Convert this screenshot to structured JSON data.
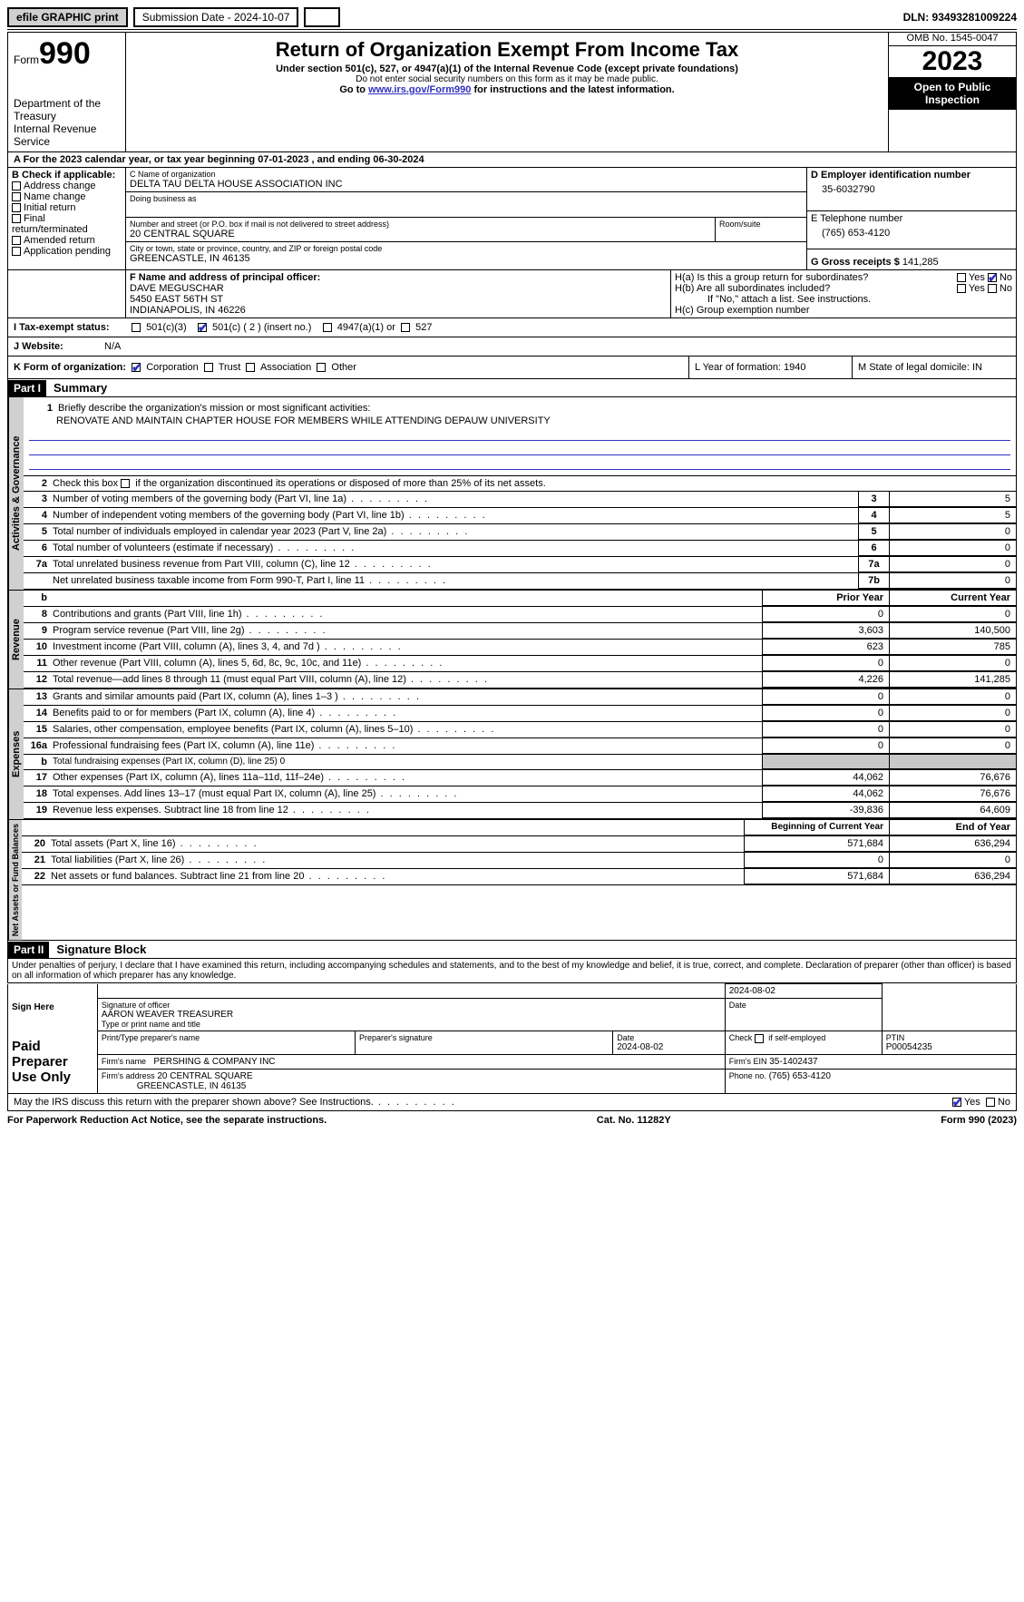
{
  "topbar": {
    "efile": "efile GRAPHIC print",
    "submission_label": "Submission Date - 2024-10-07",
    "dln_label": "DLN: 93493281009224"
  },
  "header": {
    "form_prefix": "Form",
    "form_number": "990",
    "dept": "Department of the Treasury",
    "irs": "Internal Revenue Service",
    "title": "Return of Organization Exempt From Income Tax",
    "subtitle": "Under section 501(c), 527, or 4947(a)(1) of the Internal Revenue Code (except private foundations)",
    "ssn_note": "Do not enter social security numbers on this form as it may be made public.",
    "goto": "Go to ",
    "goto_link": "www.irs.gov/Form990",
    "goto_rest": " for instructions and the latest information.",
    "omb": "OMB No. 1545-0047",
    "year": "2023",
    "open": "Open to Public Inspection"
  },
  "period": {
    "line": "A For the 2023 calendar year, or tax year beginning 07-01-2023   , and ending 06-30-2024"
  },
  "boxB": {
    "label": "B Check if applicable:",
    "opts": [
      "Address change",
      "Name change",
      "Initial return",
      "Final return/terminated",
      "Amended return",
      "Application pending"
    ]
  },
  "boxC": {
    "name_label": "C Name of organization",
    "name": "DELTA TAU DELTA HOUSE ASSOCIATION INC",
    "dba_label": "Doing business as",
    "street_label": "Number and street (or P.O. box if mail is not delivered to street address)",
    "street": "20 CENTRAL SQUARE",
    "room_label": "Room/suite",
    "city_label": "City or town, state or province, country, and ZIP or foreign postal code",
    "city": "GREENCASTLE, IN  46135"
  },
  "boxD": {
    "label": "D Employer identification number",
    "value": "35-6032790"
  },
  "boxE": {
    "label": "E Telephone number",
    "value": "(765) 653-4120"
  },
  "boxG": {
    "label": "G Gross receipts $",
    "value": "141,285"
  },
  "boxF": {
    "label": "F  Name and address of principal officer:",
    "name": "DAVE MEGUSCHAR",
    "street": "5450 EAST 56TH ST",
    "city": "INDIANAPOLIS, IN  46226"
  },
  "boxH": {
    "a": "H(a)  Is this a group return for subordinates?",
    "b": "H(b)  Are all subordinates included?",
    "b_note": "If \"No,\" attach a list. See instructions.",
    "c": "H(c)  Group exemption number",
    "yes": "Yes",
    "no": "No"
  },
  "taxexempt": {
    "label": "I   Tax-exempt status:",
    "c3": "501(c)(3)",
    "c": "501(c) ( 2 ) (insert no.)",
    "a": "4947(a)(1) or",
    "d": "527"
  },
  "website": {
    "label": "J   Website:",
    "value": "N/A"
  },
  "formorg": {
    "label": "K Form of organization:",
    "opts": [
      "Corporation",
      "Trust",
      "Association",
      "Other"
    ]
  },
  "boxL": {
    "label": "L Year of formation: 1940"
  },
  "boxM": {
    "label": "M State of legal domicile: IN"
  },
  "part1": {
    "hdr": "Part I",
    "title": "Summary",
    "mission_label": "Briefly describe the organization's mission or most significant activities:",
    "mission": "RENOVATE AND MAINTAIN CHAPTER HOUSE FOR MEMBERS WHILE ATTENDING DEPAUW UNIVERSITY",
    "line2": "Check this box      if the organization discontinued its operations or disposed of more than 25% of its net assets.",
    "governance_rows": [
      {
        "n": "3",
        "t": "Number of voting members of the governing body (Part VI, line 1a)",
        "box": "3",
        "v": "5"
      },
      {
        "n": "4",
        "t": "Number of independent voting members of the governing body (Part VI, line 1b)",
        "box": "4",
        "v": "5"
      },
      {
        "n": "5",
        "t": "Total number of individuals employed in calendar year 2023 (Part V, line 2a)",
        "box": "5",
        "v": "0"
      },
      {
        "n": "6",
        "t": "Total number of volunteers (estimate if necessary)",
        "box": "6",
        "v": "0"
      },
      {
        "n": "7a",
        "t": "Total unrelated business revenue from Part VIII, column (C), line 12",
        "box": "7a",
        "v": "0"
      },
      {
        "n": "",
        "t": "Net unrelated business taxable income from Form 990-T, Part I, line 11",
        "box": "7b",
        "v": "0"
      }
    ],
    "col_hdr_b": "b",
    "prior": "Prior Year",
    "current": "Current Year",
    "revenue_rows": [
      {
        "n": "8",
        "t": "Contributions and grants (Part VIII, line 1h)",
        "p": "0",
        "c": "0"
      },
      {
        "n": "9",
        "t": "Program service revenue (Part VIII, line 2g)",
        "p": "3,603",
        "c": "140,500"
      },
      {
        "n": "10",
        "t": "Investment income (Part VIII, column (A), lines 3, 4, and 7d )",
        "p": "623",
        "c": "785"
      },
      {
        "n": "11",
        "t": "Other revenue (Part VIII, column (A), lines 5, 6d, 8c, 9c, 10c, and 11e)",
        "p": "0",
        "c": "0"
      },
      {
        "n": "12",
        "t": "Total revenue—add lines 8 through 11 (must equal Part VIII, column (A), line 12)",
        "p": "4,226",
        "c": "141,285"
      }
    ],
    "expense_rows": [
      {
        "n": "13",
        "t": "Grants and similar amounts paid (Part IX, column (A), lines 1–3 )",
        "p": "0",
        "c": "0"
      },
      {
        "n": "14",
        "t": "Benefits paid to or for members (Part IX, column (A), line 4)",
        "p": "0",
        "c": "0"
      },
      {
        "n": "15",
        "t": "Salaries, other compensation, employee benefits (Part IX, column (A), lines 5–10)",
        "p": "0",
        "c": "0"
      },
      {
        "n": "16a",
        "t": "Professional fundraising fees (Part IX, column (A), line 11e)",
        "p": "0",
        "c": "0"
      },
      {
        "n": "b",
        "t": "Total fundraising expenses (Part IX, column (D), line 25) 0",
        "p": "",
        "c": "",
        "shade": true,
        "tiny": true
      },
      {
        "n": "17",
        "t": "Other expenses (Part IX, column (A), lines 11a–11d, 11f–24e)",
        "p": "44,062",
        "c": "76,676"
      },
      {
        "n": "18",
        "t": "Total expenses. Add lines 13–17 (must equal Part IX, column (A), line 25)",
        "p": "44,062",
        "c": "76,676"
      },
      {
        "n": "19",
        "t": "Revenue less expenses. Subtract line 18 from line 12",
        "p": "-39,836",
        "c": "64,609"
      }
    ],
    "na_hdr1": "Beginning of Current Year",
    "na_hdr2": "End of the Year",
    "netasset_rows": [
      {
        "n": "20",
        "t": "Total assets (Part X, line 16)",
        "p": "571,684",
        "c": "636,294"
      },
      {
        "n": "21",
        "t": "Total liabilities (Part X, line 26)",
        "p": "0",
        "c": "0"
      },
      {
        "n": "22",
        "t": "Net assets or fund balances. Subtract line 21 from line 20",
        "p": "571,684",
        "c": "636,294"
      }
    ],
    "side_gov": "Activities & Governance",
    "side_rev": "Revenue",
    "side_exp": "Expenses",
    "side_na": "Net Assets or Fund Balances"
  },
  "part2": {
    "hdr": "Part II",
    "title": "Signature Block",
    "decl": "Under penalties of perjury, I declare that I have examined this return, including accompanying schedules and statements, and to the best of my knowledge and belief, it is true, correct, and complete. Declaration of preparer (other than officer) is based on all information of which preparer has any knowledge.",
    "sign_here": "Sign Here",
    "sig_officer_label": "Signature of officer",
    "sig_officer": "AARON WEAVER  TREASURER",
    "sig_type_label": "Type or print name and title",
    "date_label": "Date",
    "date": "2024-08-02",
    "paid": "Paid Preparer Use Only",
    "prep_name_label": "Print/Type preparer's name",
    "prep_sig_label": "Preparer's signature",
    "prep_date": "2024-08-02",
    "self_emp": "Check      if self-employed",
    "ptin_label": "PTIN",
    "ptin": "P00054235",
    "firm_label": "Firm's name",
    "firm": "PERSHING & COMPANY INC",
    "firm_ein_label": "Firm's EIN",
    "firm_ein": "35-1402437",
    "firm_addr_label": "Firm's address",
    "firm_addr1": "20 CENTRAL SQUARE",
    "firm_addr2": "GREENCASTLE, IN  46135",
    "phone_label": "Phone no.",
    "phone": "(765) 653-4120",
    "may_irs": "May the IRS discuss this return with the preparer shown above? See Instructions.",
    "yes": "Yes",
    "no": "No"
  },
  "footer": {
    "pra": "For Paperwork Reduction Act Notice, see the separate instructions.",
    "cat": "Cat. No. 11282Y",
    "form": "Form 990 (2023)"
  },
  "colors": {
    "link": "#3030c0",
    "shade": "#c8c8c8"
  }
}
